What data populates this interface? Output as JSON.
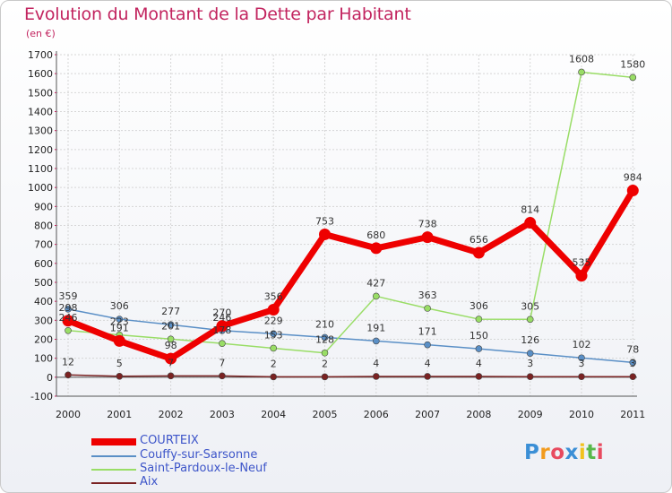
{
  "chart_data": {
    "type": "line",
    "title": "Evolution du Montant de la Dette par Habitant",
    "subtitle": "(en €)",
    "x": [
      "2000",
      "2001",
      "2002",
      "2003",
      "2004",
      "2005",
      "2006",
      "2007",
      "2008",
      "2009",
      "2010",
      "2011"
    ],
    "ylim": [
      -100,
      1700
    ],
    "yticks": [
      -100,
      0,
      100,
      200,
      300,
      400,
      500,
      600,
      700,
      800,
      900,
      1000,
      1100,
      1200,
      1300,
      1400,
      1500,
      1600,
      1700
    ],
    "grid": true,
    "legend": "bottom-left",
    "series": [
      {
        "name": "COURTEIX",
        "color": "#ee0000",
        "values": [
          298,
          191,
          98,
          270,
          356,
          753,
          680,
          738,
          656,
          814,
          535,
          984
        ]
      },
      {
        "name": "Couffy-sur-Sarsonne",
        "color": "#5a8fc6",
        "values": [
          359,
          306,
          277,
          246,
          229,
          210,
          191,
          171,
          150,
          126,
          102,
          78
        ]
      },
      {
        "name": "Saint-Pardoux-le-Neuf",
        "color": "#99dd66",
        "values": [
          246,
          223,
          201,
          178,
          153,
          128,
          427,
          363,
          306,
          305,
          1608,
          1580
        ]
      },
      {
        "name": "Aix",
        "color": "#7a2222",
        "values": [
          12,
          5,
          7,
          7,
          2,
          2,
          4,
          4,
          4,
          3,
          3,
          3
        ]
      }
    ],
    "point_labels": [
      [
        "298",
        "191",
        "98",
        "270",
        "356",
        "753",
        "680",
        "738",
        "656",
        "814",
        "535",
        "984"
      ],
      [
        "359",
        "306",
        "277",
        "246",
        "229",
        "210",
        "191",
        "171",
        "150",
        "126",
        "102",
        "78"
      ],
      [
        "246",
        "223",
        "201",
        "178",
        "153",
        "128",
        "427",
        "363",
        "306",
        "305",
        "1608",
        "1580"
      ],
      [
        "12",
        "5",
        "7",
        "7",
        "2",
        "2",
        "4",
        "4",
        "4",
        "3",
        "3",
        "3"
      ]
    ]
  },
  "logo": {
    "letters": [
      "P",
      "r",
      "o",
      "x",
      "i",
      "t",
      "i"
    ],
    "colors": [
      "#3b8fd6",
      "#f29b1d",
      "#e84a5f",
      "#3b8fd6",
      "#f2c21d",
      "#58b94a",
      "#e84a5f"
    ]
  }
}
